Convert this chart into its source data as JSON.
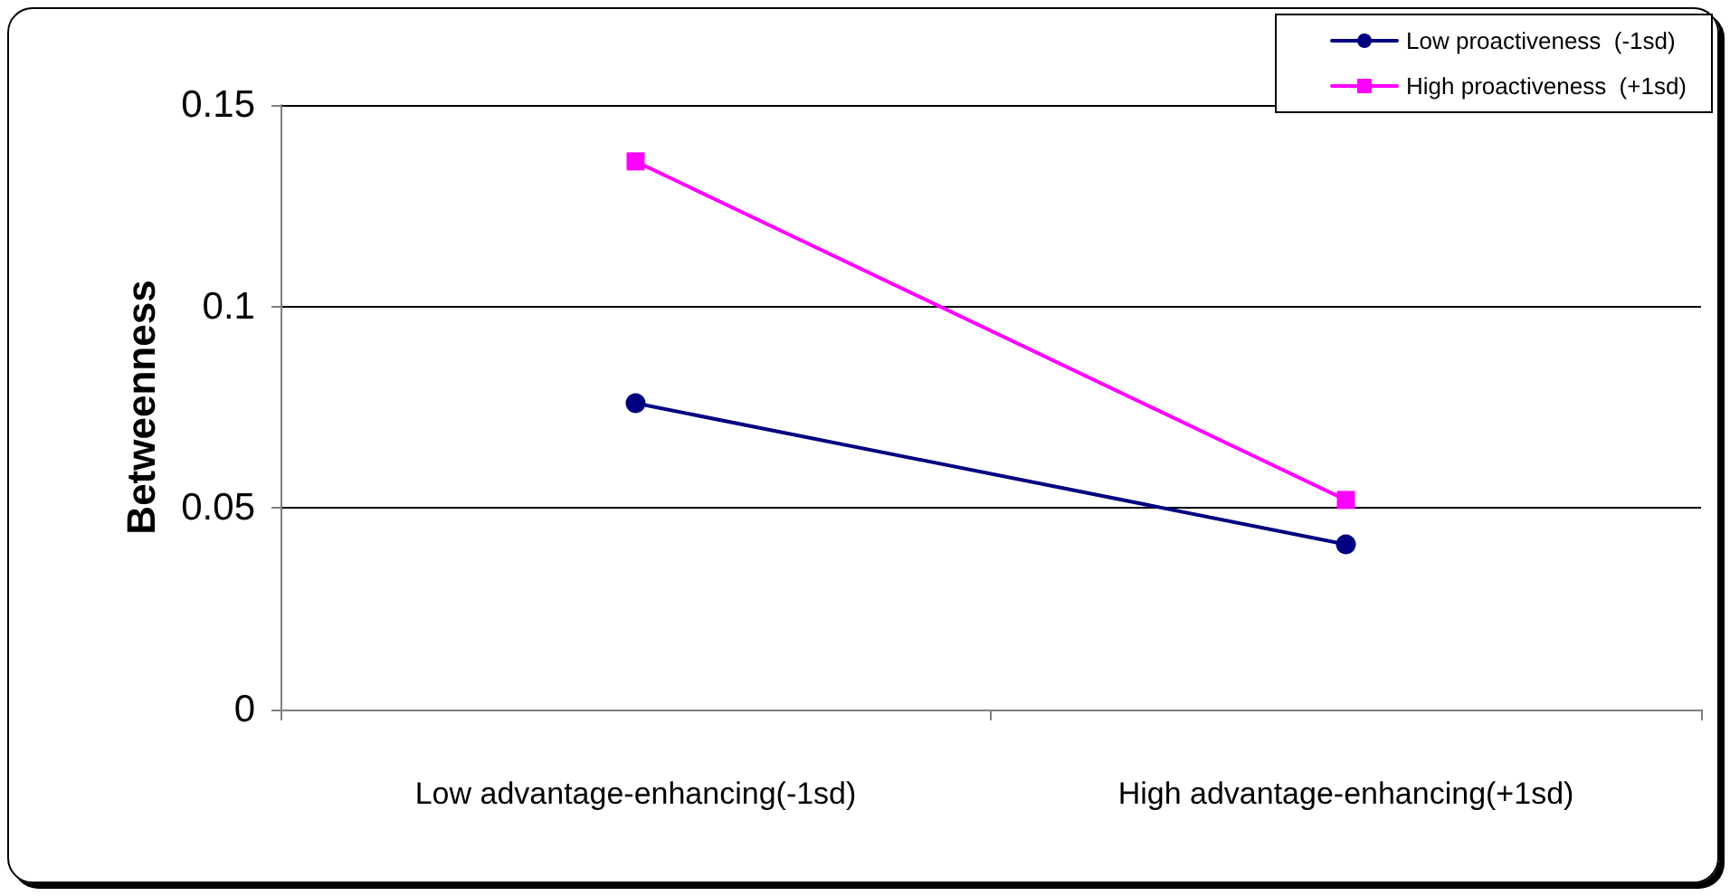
{
  "chart_data": {
    "type": "line",
    "ylabel": "Betweenness",
    "categories": [
      "Low advantage-enhancing(-1sd)",
      "High advantage-enhancing(+1sd)"
    ],
    "series": [
      {
        "name": "Low proactiveness  (-1sd)",
        "color": "#000080",
        "marker": "circle",
        "values": [
          0.076,
          0.041
        ]
      },
      {
        "name": "High proactiveness  (+1sd)",
        "color": "#ff00ff",
        "marker": "square",
        "values": [
          0.136,
          0.052
        ]
      }
    ],
    "ylim": [
      0,
      0.15
    ],
    "yticks": [
      0,
      0.05,
      0.1,
      0.15
    ],
    "grid": "y",
    "legend": "top right",
    "line_style": "solid"
  }
}
